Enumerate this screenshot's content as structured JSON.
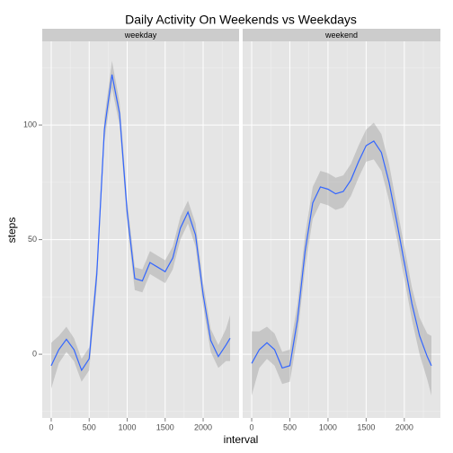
{
  "title": "Daily Activity On Weekends vs Weekdays",
  "x_label": "interval",
  "y_label": "steps",
  "chart_data": [
    {
      "type": "line",
      "facet": "weekday",
      "color": "#3366ff",
      "band_color": "#999999",
      "x": [
        0,
        100,
        200,
        300,
        400,
        500,
        600,
        700,
        800,
        900,
        1000,
        1100,
        1200,
        1300,
        1400,
        1500,
        1600,
        1700,
        1800,
        1900,
        2000,
        2100,
        2200,
        2300,
        2355
      ],
      "values": [
        -5,
        2,
        6.5,
        2,
        -7,
        -2,
        35,
        98,
        122,
        105,
        62,
        33,
        32,
        40,
        38,
        36,
        42,
        55,
        62,
        52,
        26,
        6,
        -1,
        4,
        7
      ],
      "lower": [
        -15,
        -4,
        1,
        -3,
        -12,
        -7,
        30,
        93,
        116,
        100,
        57,
        28,
        27,
        35,
        33,
        31,
        37,
        50,
        57,
        47,
        21,
        1,
        -6,
        -3,
        -3
      ],
      "upper": [
        5,
        8,
        12,
        7,
        -2,
        3,
        40,
        103,
        128,
        110,
        67,
        38,
        37,
        45,
        43,
        41,
        47,
        60,
        67,
        57,
        31,
        11,
        4,
        11,
        17
      ],
      "xlim": [
        -118,
        2473
      ],
      "ylim": [
        -27.8,
        136.5
      ],
      "xticks": [
        0,
        500,
        1000,
        1500,
        2000
      ],
      "yticks": [
        0,
        50,
        100
      ],
      "xminor": [
        250,
        750,
        1250,
        1750,
        2250
      ],
      "yminor": [
        -25,
        25,
        75,
        125
      ]
    },
    {
      "type": "line",
      "facet": "weekend",
      "color": "#3366ff",
      "band_color": "#999999",
      "x": [
        0,
        100,
        200,
        300,
        400,
        500,
        600,
        700,
        800,
        900,
        1000,
        1100,
        1200,
        1300,
        1400,
        1500,
        1600,
        1700,
        1800,
        1900,
        2000,
        2100,
        2200,
        2300,
        2355
      ],
      "values": [
        -4,
        2,
        5,
        2,
        -6,
        -5,
        15,
        45,
        66,
        73,
        72,
        70,
        71,
        76,
        84,
        91,
        93,
        88,
        75,
        58,
        40,
        22,
        8,
        -1,
        -5
      ],
      "lower": [
        -18,
        -6,
        -2,
        -5,
        -13,
        -12,
        8,
        38,
        59,
        66,
        65,
        63,
        64,
        69,
        77,
        84,
        85,
        80,
        67,
        51,
        33,
        15,
        0,
        -11,
        -18
      ],
      "upper": [
        10,
        10,
        12,
        9,
        1,
        2,
        22,
        52,
        73,
        80,
        79,
        77,
        78,
        83,
        91,
        98,
        101,
        96,
        83,
        65,
        47,
        29,
        16,
        9,
        8
      ],
      "xlim": [
        -118,
        2473
      ],
      "ylim": [
        -27.8,
        136.5
      ],
      "xticks": [
        0,
        500,
        1000,
        1500,
        2000
      ],
      "yticks": [
        0,
        50,
        100
      ],
      "xminor": [
        250,
        750,
        1250,
        1750,
        2250
      ],
      "yminor": [
        -25,
        25,
        75,
        125
      ]
    }
  ]
}
